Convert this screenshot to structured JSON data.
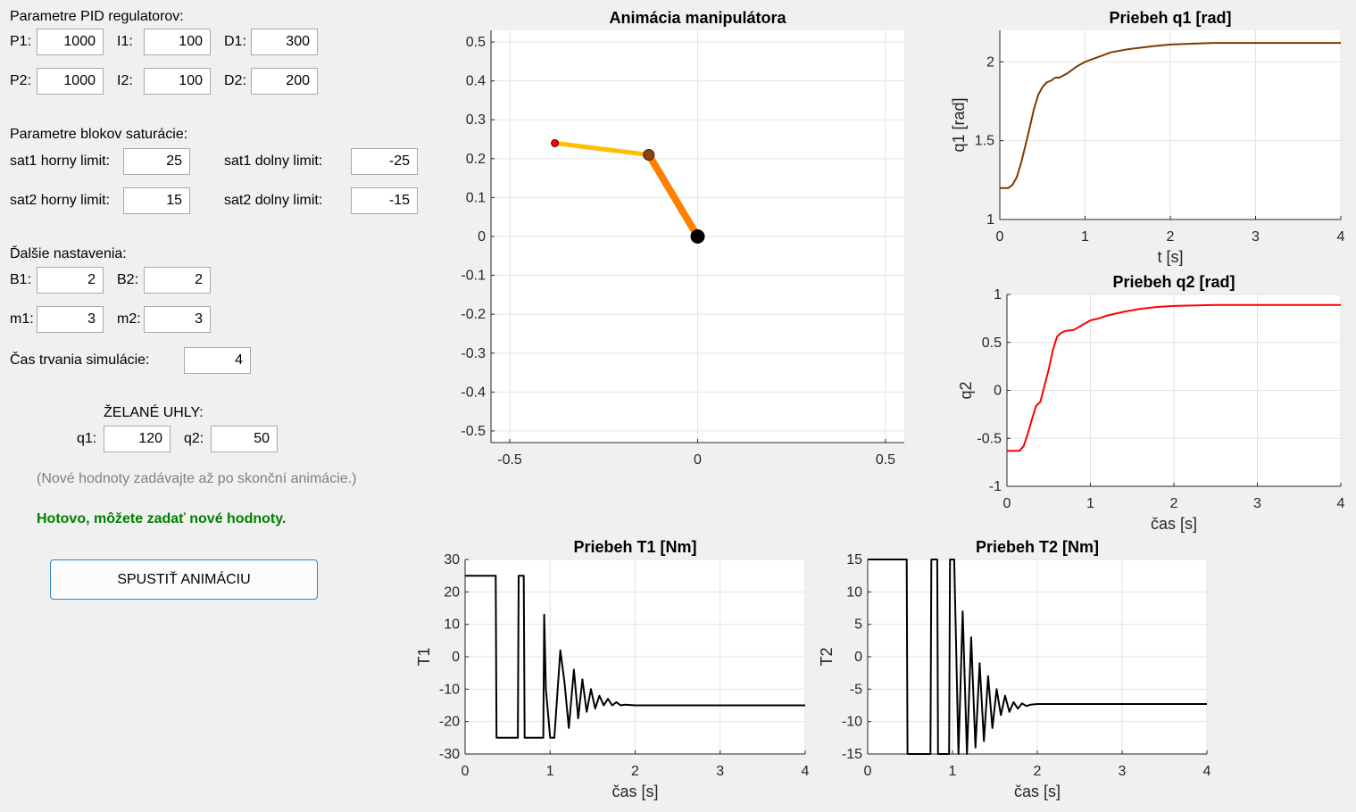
{
  "pid": {
    "title": "Parametre PID regulatorov:",
    "p1_label": "P1:",
    "p1": "1000",
    "i1_label": "I1:",
    "i1": "100",
    "d1_label": "D1:",
    "d1": "300",
    "p2_label": "P2:",
    "p2": "1000",
    "i2_label": "I2:",
    "i2": "100",
    "d2_label": "D2:",
    "d2": "200"
  },
  "saturation": {
    "title": "Parametre blokov saturácie:",
    "sat1_upper_label": "sat1 horny limit:",
    "sat1_upper": "25",
    "sat1_lower_label": "sat1 dolny limit:",
    "sat1_lower": "-25",
    "sat2_upper_label": "sat2 horny limit:",
    "sat2_upper": "15",
    "sat2_lower_label": "sat2 dolny limit:",
    "sat2_lower": "-15"
  },
  "other": {
    "title": "Ďalšie nastavenia:",
    "b1_label": "B1:",
    "b1": "2",
    "b2_label": "B2:",
    "b2": "2",
    "m1_label": "m1:",
    "m1": "3",
    "m2_label": "m2:",
    "m2": "3",
    "duration_label": "Čas trvania simulácie:",
    "duration": "4"
  },
  "desired": {
    "title": "ŽELANÉ UHLY:",
    "q1_label": "q1:",
    "q1": "120",
    "q2_label": "q2:",
    "q2": "50"
  },
  "note": "(Nové hodnoty zadávajte až po skonční animácie.)",
  "status": "Hotovo, môžete zadať nové hodnoty.",
  "start_button": "SPUSTIŤ ANIMÁCIU",
  "colors": {
    "q1_line": "#7a3b00",
    "q2_line": "#ff0000",
    "torque_line": "#000000",
    "link1": "#ff8000",
    "link2": "#ffbf00",
    "button_border": "#2a83c8",
    "status": "#008000"
  },
  "chart_data": [
    {
      "id": "animation",
      "type": "line",
      "title": "Animácia manipulátora",
      "xlim": [
        -0.55,
        0.55
      ],
      "ylim": [
        -0.53,
        0.53
      ],
      "xticks": [
        "-0.5",
        "0",
        "0.5"
      ],
      "xtick_values": [
        -0.5,
        0,
        0.5
      ],
      "yticks": [
        "0.5",
        "0.4",
        "0.3",
        "0.2",
        "0.1",
        "0",
        "-0.1",
        "-0.2",
        "-0.3",
        "-0.4",
        "-0.5"
      ],
      "ytick_values": [
        0.5,
        0.4,
        0.3,
        0.2,
        0.1,
        0,
        -0.1,
        -0.2,
        -0.3,
        -0.4,
        -0.5
      ],
      "grid": true,
      "joints": [
        {
          "name": "base",
          "x": 0,
          "y": 0
        },
        {
          "name": "elbow",
          "x": -0.13,
          "y": 0.21
        },
        {
          "name": "end_effector",
          "x": -0.38,
          "y": 0.24
        }
      ]
    },
    {
      "id": "q1",
      "type": "line",
      "title": "Priebeh q1 [rad]",
      "xlabel": "t [s]",
      "ylabel": "q1 [rad]",
      "xlim": [
        0,
        4
      ],
      "ylim": [
        1,
        2.2
      ],
      "xticks": [
        "0",
        "1",
        "2",
        "3",
        "4"
      ],
      "xtick_values": [
        0,
        1,
        2,
        3,
        4
      ],
      "yticks": [
        "2",
        "1.5",
        "1"
      ],
      "ytick_values": [
        2,
        1.5,
        1
      ],
      "grid": true,
      "x": [
        0,
        0.1,
        0.15,
        0.2,
        0.25,
        0.3,
        0.35,
        0.4,
        0.45,
        0.5,
        0.55,
        0.6,
        0.65,
        0.7,
        0.8,
        0.9,
        1.0,
        1.1,
        1.2,
        1.3,
        1.5,
        1.8,
        2.0,
        2.5,
        3.0,
        3.5,
        4.0
      ],
      "y": [
        1.2,
        1.2,
        1.22,
        1.27,
        1.36,
        1.47,
        1.58,
        1.7,
        1.79,
        1.84,
        1.87,
        1.88,
        1.9,
        1.9,
        1.93,
        1.97,
        2.0,
        2.02,
        2.04,
        2.06,
        2.08,
        2.1,
        2.11,
        2.12,
        2.12,
        2.12,
        2.12
      ]
    },
    {
      "id": "q2",
      "type": "line",
      "title": "Priebeh q2 [rad]",
      "xlabel": "čas [s]",
      "ylabel": "q2",
      "xlim": [
        0,
        4
      ],
      "ylim": [
        -1,
        1
      ],
      "xticks": [
        "0",
        "1",
        "2",
        "3",
        "4"
      ],
      "xtick_values": [
        0,
        1,
        2,
        3,
        4
      ],
      "yticks": [
        "1",
        "0.5",
        "0",
        "-0.5",
        "-1"
      ],
      "ytick_values": [
        1,
        0.5,
        0,
        -0.5,
        -1
      ],
      "grid": true,
      "x": [
        0,
        0.15,
        0.2,
        0.25,
        0.3,
        0.35,
        0.4,
        0.45,
        0.5,
        0.55,
        0.6,
        0.65,
        0.7,
        0.8,
        0.9,
        1.0,
        1.1,
        1.2,
        1.4,
        1.6,
        1.8,
        2.0,
        2.5,
        3.0,
        3.5,
        4.0
      ],
      "y": [
        -0.63,
        -0.63,
        -0.58,
        -0.45,
        -0.3,
        -0.16,
        -0.12,
        0.05,
        0.22,
        0.42,
        0.56,
        0.6,
        0.62,
        0.63,
        0.68,
        0.73,
        0.75,
        0.78,
        0.82,
        0.85,
        0.87,
        0.88,
        0.89,
        0.89,
        0.89,
        0.89
      ]
    },
    {
      "id": "t1",
      "type": "line",
      "title": "Priebeh T1 [Nm]",
      "xlabel": "čas [s]",
      "ylabel": "T1",
      "xlim": [
        0,
        4
      ],
      "ylim": [
        -30,
        30
      ],
      "xticks": [
        "0",
        "1",
        "2",
        "3",
        "4"
      ],
      "xtick_values": [
        0,
        1,
        2,
        3,
        4
      ],
      "yticks": [
        "30",
        "20",
        "10",
        "0",
        "-10",
        "-20",
        "-30"
      ],
      "ytick_values": [
        30,
        20,
        10,
        0,
        -10,
        -20,
        -30
      ],
      "grid": true,
      "x": [
        0,
        0.36,
        0.37,
        0.62,
        0.63,
        0.69,
        0.7,
        0.92,
        0.93,
        0.95,
        1.0,
        1.05,
        1.12,
        1.17,
        1.22,
        1.28,
        1.33,
        1.38,
        1.43,
        1.48,
        1.53,
        1.58,
        1.63,
        1.68,
        1.73,
        1.78,
        1.83,
        1.88,
        2.0,
        4.0
      ],
      "y": [
        25,
        25,
        -25,
        -25,
        25,
        25,
        -25,
        -25,
        13,
        -10,
        -25,
        -25,
        2,
        -8,
        -22,
        -4,
        -19,
        -7,
        -17,
        -10,
        -16,
        -12,
        -15,
        -13,
        -15,
        -14,
        -15,
        -14.8,
        -15,
        -15
      ]
    },
    {
      "id": "t2",
      "type": "line",
      "title": "Priebeh T2 [Nm]",
      "xlabel": "čas [s]",
      "ylabel": "T2",
      "xlim": [
        0,
        4
      ],
      "ylim": [
        -15,
        15
      ],
      "xticks": [
        "0",
        "1",
        "2",
        "3",
        "4"
      ],
      "xtick_values": [
        0,
        1,
        2,
        3,
        4
      ],
      "yticks": [
        "15",
        "10",
        "5",
        "0",
        "-5",
        "-10",
        "-15"
      ],
      "ytick_values": [
        15,
        10,
        5,
        0,
        -5,
        -10,
        -15
      ],
      "grid": true,
      "x": [
        0,
        0.46,
        0.47,
        0.74,
        0.75,
        0.82,
        0.83,
        0.96,
        0.97,
        1.02,
        1.07,
        1.12,
        1.17,
        1.22,
        1.27,
        1.32,
        1.37,
        1.42,
        1.47,
        1.52,
        1.57,
        1.62,
        1.67,
        1.72,
        1.77,
        1.82,
        1.87,
        1.92,
        2.0,
        4.0
      ],
      "y": [
        15,
        15,
        -15,
        -15,
        15,
        15,
        -15,
        -15,
        15,
        15,
        -15,
        7,
        -15,
        3,
        -14,
        -1,
        -13,
        -3,
        -11,
        -5,
        -9,
        -6,
        -8.5,
        -7,
        -8,
        -7.2,
        -7.6,
        -7.4,
        -7.3,
        -7.3
      ]
    }
  ]
}
